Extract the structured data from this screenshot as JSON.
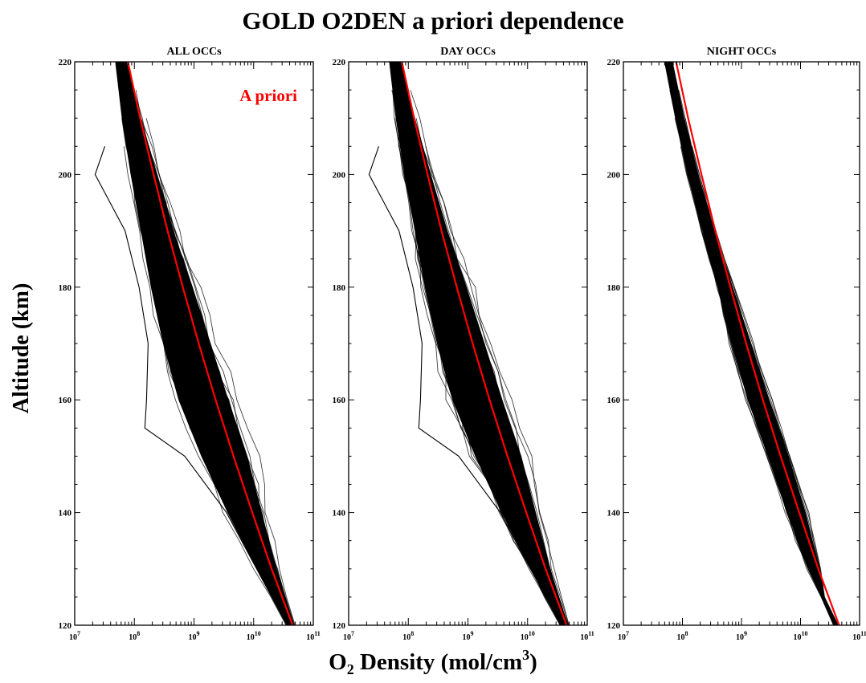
{
  "figure": {
    "title": "GOLD O2DEN a priori dependence",
    "ylabel": "Altitude (km)",
    "xlabel_prefix": "O",
    "xlabel_sub": "2",
    "xlabel_mid": " Density (mol/cm",
    "xlabel_sup": "3",
    "xlabel_suffix": ")"
  },
  "colors": {
    "profiles": "#000000",
    "apriori": "#ff0000"
  },
  "chart_data": [
    {
      "type": "line",
      "title": "ALL OCCs",
      "xscale": "log",
      "xlim": [
        10000000.0,
        100000000000.0
      ],
      "ylim": [
        120,
        220
      ],
      "yticks": [
        120,
        140,
        160,
        180,
        200,
        220
      ],
      "xtick_labels": [
        "10^7",
        "10^8",
        "10^9",
        "10^10",
        "10^11"
      ],
      "legend": {
        "text": "A priori",
        "placement": "top-right"
      },
      "series": [
        {
          "name": "A priori",
          "style": "red-line",
          "altitude": [
            120,
            130,
            140,
            150,
            160,
            170,
            180,
            190,
            200,
            210,
            220
          ],
          "density": [
            45000000000.0,
            20000000000.0,
            9500000000.0,
            4600000000.0,
            2300000000.0,
            1200000000.0,
            650000000.0,
            360000000.0,
            210000000.0,
            125000000.0,
            78000000.0
          ]
        },
        {
          "style": "occultation-envelope",
          "altitude": [
            120,
            130,
            140,
            150,
            160,
            170,
            180,
            190,
            200,
            210,
            220
          ],
          "density_low": [
            33000000000.0,
            9000000000.0,
            2500000000.0,
            800000000.0,
            320000000.0,
            180000000.0,
            120000000.0,
            90000000.0,
            65000000.0,
            50000000.0,
            42000000.0
          ],
          "density_high": [
            52000000000.0,
            30000000000.0,
            20000000000.0,
            13000000000.0,
            6500000000.0,
            3200000000.0,
            1500000000.0,
            650000000.0,
            320000000.0,
            160000000.0,
            85000000.0
          ]
        },
        {
          "style": "outlier-profile",
          "altitude": [
            120,
            140,
            150,
            155,
            160,
            170,
            180,
            190,
            200,
            205
          ],
          "density": [
            36000000000.0,
            3500000000.0,
            700000000.0,
            150000000.0,
            160000000.0,
            170000000.0,
            120000000.0,
            70000000.0,
            22000000.0,
            32000000.0
          ]
        }
      ]
    },
    {
      "type": "line",
      "title": "DAY OCCs",
      "xscale": "log",
      "xlim": [
        10000000.0,
        100000000000.0
      ],
      "ylim": [
        120,
        220
      ],
      "yticks": [
        120,
        140,
        160,
        180,
        200,
        220
      ],
      "xtick_labels": [
        "10^7",
        "10^8",
        "10^9",
        "10^10",
        "10^11"
      ],
      "series": [
        {
          "name": "A priori",
          "style": "red-line",
          "altitude": [
            120,
            130,
            140,
            150,
            160,
            170,
            180,
            190,
            200,
            210,
            220
          ],
          "density": [
            45000000000.0,
            20000000000.0,
            9500000000.0,
            4600000000.0,
            2300000000.0,
            1200000000.0,
            650000000.0,
            360000000.0,
            210000000.0,
            125000000.0,
            78000000.0
          ]
        },
        {
          "style": "occultation-envelope",
          "altitude": [
            120,
            130,
            140,
            150,
            160,
            170,
            180,
            190,
            200,
            210,
            220
          ],
          "density_low": [
            33000000000.0,
            9000000000.0,
            2500000000.0,
            800000000.0,
            320000000.0,
            180000000.0,
            120000000.0,
            90000000.0,
            65000000.0,
            50000000.0,
            42000000.0
          ],
          "density_high": [
            52000000000.0,
            30000000000.0,
            20000000000.0,
            13000000000.0,
            6500000000.0,
            3200000000.0,
            1500000000.0,
            650000000.0,
            320000000.0,
            160000000.0,
            85000000.0
          ]
        },
        {
          "style": "outlier-profile",
          "altitude": [
            120,
            140,
            150,
            155,
            160,
            170,
            180,
            190,
            200,
            205
          ],
          "density": [
            36000000000.0,
            3500000000.0,
            700000000.0,
            150000000.0,
            160000000.0,
            170000000.0,
            120000000.0,
            70000000.0,
            22000000.0,
            32000000.0
          ]
        }
      ]
    },
    {
      "type": "line",
      "title": "NIGHT OCCs",
      "xscale": "log",
      "xlim": [
        10000000.0,
        100000000000.0
      ],
      "ylim": [
        120,
        220
      ],
      "yticks": [
        120,
        140,
        160,
        180,
        200,
        220
      ],
      "xtick_labels": [
        "10^7",
        "10^8",
        "10^9",
        "10^10",
        "10^11"
      ],
      "series": [
        {
          "name": "A priori",
          "style": "red-line",
          "altitude": [
            120,
            130,
            140,
            150,
            160,
            170,
            180,
            190,
            200,
            210,
            220
          ],
          "density": [
            45000000000.0,
            20000000000.0,
            9500000000.0,
            4600000000.0,
            2300000000.0,
            1200000000.0,
            650000000.0,
            360000000.0,
            210000000.0,
            125000000.0,
            78000000.0
          ]
        },
        {
          "style": "occultation-envelope",
          "altitude": [
            120,
            125,
            130,
            140,
            150,
            160,
            170,
            180,
            190,
            200,
            210,
            220
          ],
          "density_low": [
            35000000000.0,
            22000000000.0,
            12000000000.0,
            4800000000.0,
            2200000000.0,
            1000000000.0,
            550000000.0,
            330000000.0,
            190000000.0,
            110000000.0,
            68000000.0,
            45000000.0
          ],
          "density_high": [
            45000000000.0,
            26000000000.0,
            24000000000.0,
            15000000000.0,
            8000000000.0,
            3800000000.0,
            1800000000.0,
            850000000.0,
            400000000.0,
            210000000.0,
            120000000.0,
            75000000.0
          ]
        }
      ]
    }
  ]
}
